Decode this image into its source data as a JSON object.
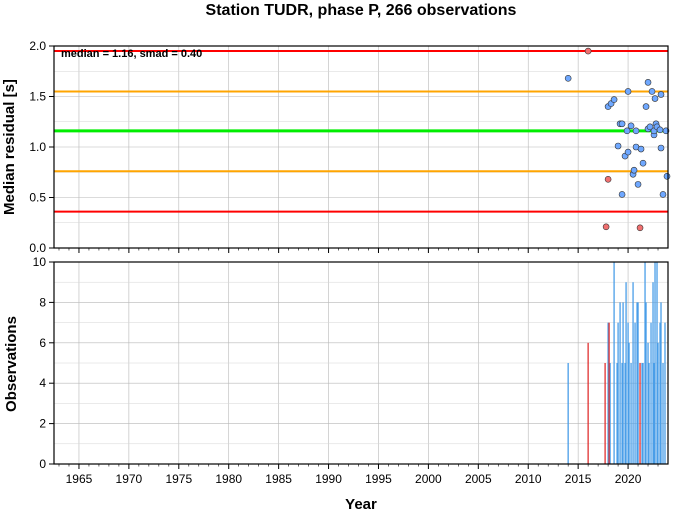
{
  "chart_data": [
    {
      "type": "scatter",
      "title": "Station TUDR, phase P, 266 observations",
      "annotation": "median = 1.16, smad = 0.40",
      "xlabel": "",
      "ylabel": "Median residual [s]",
      "xlim": [
        1962.5,
        2024
      ],
      "ylim": [
        0,
        2.0
      ],
      "yticks": [
        "0.0",
        "0.5",
        "1.0",
        "1.5",
        "2.0"
      ],
      "grid": true,
      "reference_lines": [
        {
          "y": 1.16,
          "color": "#00ee00"
        },
        {
          "y": 1.55,
          "color": "#ffa500"
        },
        {
          "y": 0.76,
          "color": "#ffa500"
        },
        {
          "y": 1.95,
          "color": "#ff0000"
        },
        {
          "y": 0.36,
          "color": "#ff0000"
        }
      ],
      "series": [
        {
          "color": "#6fa8ff",
          "points": [
            [
              2014.0,
              1.68
            ],
            [
              2018.0,
              1.4
            ],
            [
              2018.3,
              1.43
            ],
            [
              2018.6,
              1.47
            ],
            [
              2019.0,
              1.01
            ],
            [
              2019.2,
              1.23
            ],
            [
              2019.4,
              1.23
            ],
            [
              2019.4,
              0.53
            ],
            [
              2019.7,
              0.91
            ],
            [
              2019.9,
              1.16
            ],
            [
              2020.0,
              1.55
            ],
            [
              2020.0,
              0.95
            ],
            [
              2020.3,
              1.21
            ],
            [
              2020.5,
              0.73
            ],
            [
              2020.6,
              0.77
            ],
            [
              2020.8,
              1.16
            ],
            [
              2020.8,
              1.0
            ],
            [
              2021.0,
              0.63
            ],
            [
              2021.3,
              0.98
            ],
            [
              2021.5,
              0.84
            ],
            [
              2021.8,
              1.4
            ],
            [
              2022.0,
              1.18
            ],
            [
              2022.0,
              1.64
            ],
            [
              2022.2,
              1.2
            ],
            [
              2022.4,
              1.55
            ],
            [
              2022.6,
              1.12
            ],
            [
              2022.6,
              1.16
            ],
            [
              2022.7,
              1.48
            ],
            [
              2022.8,
              1.23
            ],
            [
              2022.9,
              1.2
            ],
            [
              2023.2,
              1.17
            ],
            [
              2023.3,
              0.99
            ],
            [
              2023.3,
              1.52
            ],
            [
              2023.5,
              0.53
            ],
            [
              2023.8,
              1.16
            ],
            [
              2023.9,
              0.71
            ]
          ]
        },
        {
          "color": "#f07070",
          "points": [
            [
              2016.0,
              1.95
            ],
            [
              2018.0,
              0.68
            ],
            [
              2017.8,
              0.21
            ],
            [
              2021.2,
              0.2
            ]
          ]
        }
      ]
    },
    {
      "type": "bar",
      "xlabel": "Year",
      "ylabel": "Observations",
      "xlim": [
        1962.5,
        2024
      ],
      "ylim": [
        0,
        10
      ],
      "xticks": [
        "1965",
        "1970",
        "1975",
        "1980",
        "1985",
        "1990",
        "1995",
        "2000",
        "2005",
        "2010",
        "2015",
        "2020"
      ],
      "yticks": [
        "0",
        "2",
        "4",
        "6",
        "8",
        "10"
      ],
      "grid": true,
      "series": [
        {
          "color": "#4a9ee8",
          "points": [
            [
              2014.0,
              5
            ],
            [
              2018.0,
              7
            ],
            [
              2018.2,
              5
            ],
            [
              2018.6,
              10
            ],
            [
              2018.9,
              5
            ],
            [
              2019.0,
              7
            ],
            [
              2019.2,
              8
            ],
            [
              2019.4,
              5
            ],
            [
              2019.5,
              8
            ],
            [
              2019.7,
              5
            ],
            [
              2019.8,
              9
            ],
            [
              2020.0,
              7
            ],
            [
              2020.1,
              6
            ],
            [
              2020.3,
              5
            ],
            [
              2020.5,
              9
            ],
            [
              2020.7,
              7
            ],
            [
              2020.9,
              8
            ],
            [
              2021.0,
              8
            ],
            [
              2021.4,
              5
            ],
            [
              2021.5,
              5
            ],
            [
              2021.7,
              10
            ],
            [
              2021.8,
              8
            ],
            [
              2022.0,
              6
            ],
            [
              2022.1,
              5
            ],
            [
              2022.3,
              7
            ],
            [
              2022.5,
              9
            ],
            [
              2022.6,
              5
            ],
            [
              2022.7,
              10
            ],
            [
              2022.9,
              10
            ],
            [
              2023.0,
              6
            ],
            [
              2023.2,
              7
            ],
            [
              2023.3,
              8
            ],
            [
              2023.5,
              5
            ],
            [
              2023.7,
              7
            ]
          ]
        },
        {
          "color": "#e03030",
          "points": [
            [
              2016.0,
              6
            ],
            [
              2017.7,
              5
            ],
            [
              2018.1,
              7
            ],
            [
              2021.2,
              5
            ]
          ]
        }
      ]
    }
  ]
}
